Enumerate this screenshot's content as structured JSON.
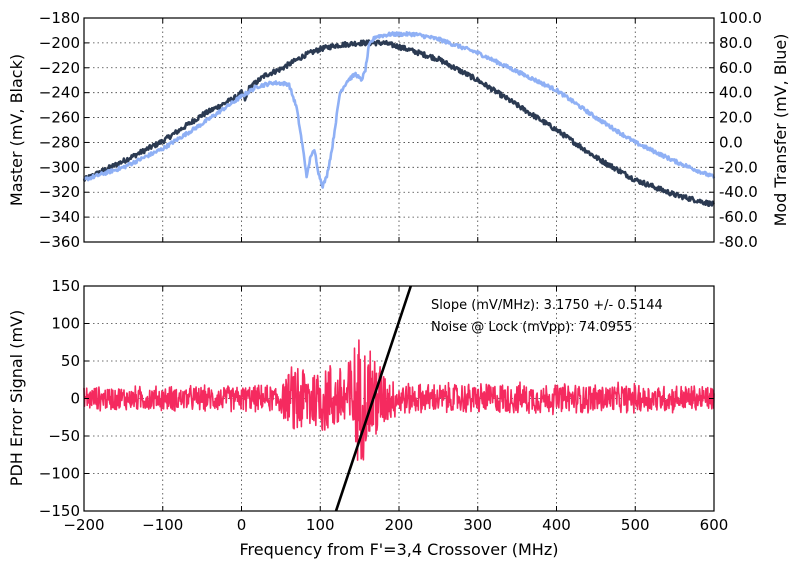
{
  "chart_data": [
    {
      "type": "line",
      "title": "",
      "xlabel": "",
      "ylabel": "Master (mV, Black)",
      "y2label": "Mod Transfer (mV, Blue)",
      "xlim": [
        -200,
        600
      ],
      "ylim": [
        -360,
        -180
      ],
      "y2lim": [
        -80,
        100
      ],
      "grid": true,
      "xticks": [
        -200,
        -100,
        0,
        100,
        200,
        300,
        400,
        500,
        600
      ],
      "yticks": [
        -360,
        -340,
        -320,
        -300,
        -280,
        -260,
        -240,
        -220,
        -200,
        -180
      ],
      "ytick_labels": [
        "−360",
        "−340",
        "−320",
        "−300",
        "−280",
        "−260",
        "−240",
        "−220",
        "−200",
        "−180"
      ],
      "y2ticks": [
        -80,
        -60,
        -40,
        -20,
        0,
        20,
        40,
        60,
        80,
        100
      ],
      "y2tick_labels": [
        "-80.0",
        "-60.0",
        "-40.0",
        "-20.0",
        "0.0",
        "20.0",
        "40.0",
        "60.0",
        "80.0",
        "100.0"
      ],
      "series": [
        {
          "axis": "left",
          "color": "#2b3a52",
          "noise": 2.0,
          "x": [
            -200,
            -150,
            -100,
            -50,
            -20,
            -5,
            0,
            5,
            10,
            30,
            50,
            80,
            100,
            120,
            150,
            180,
            200,
            250,
            300,
            350,
            400,
            450,
            500,
            550,
            600
          ],
          "y": [
            -310,
            -295,
            -279,
            -258,
            -248,
            -243,
            -240,
            -246,
            -236,
            -226,
            -221,
            -210,
            -205,
            -202,
            -200,
            -200,
            -203,
            -213,
            -230,
            -250,
            -270,
            -292,
            -310,
            -322,
            -330
          ]
        },
        {
          "axis": "right",
          "color": "#8fb0f5",
          "noise": 1.5,
          "x": [
            -200,
            -150,
            -100,
            -50,
            0,
            20,
            40,
            60,
            70,
            78,
            83,
            88,
            93,
            98,
            103,
            108,
            115,
            125,
            135,
            145,
            152,
            157,
            162,
            170,
            190,
            220,
            250,
            300,
            350,
            400,
            450,
            500,
            550,
            600
          ],
          "y": [
            -30,
            -20,
            -5,
            15,
            37,
            45,
            48,
            47,
            28,
            -5,
            -28,
            -10,
            -7,
            -25,
            -35,
            -28,
            -5,
            40,
            50,
            55,
            50,
            57,
            78,
            85,
            87,
            87,
            83,
            72,
            57,
            42,
            20,
            0,
            -15,
            -28
          ]
        }
      ]
    },
    {
      "type": "line",
      "title": "",
      "xlabel": "Frequency from F'=3,4 Crossover (MHz)",
      "ylabel": "PDH Error Signal (mV)",
      "xlim": [
        -200,
        600
      ],
      "ylim": [
        -150,
        150
      ],
      "grid": true,
      "xticks": [
        -200,
        -100,
        0,
        100,
        200,
        300,
        400,
        500,
        600
      ],
      "xtick_labels": [
        "−200",
        "−100",
        "0",
        "100",
        "200",
        "300",
        "400",
        "500",
        "600"
      ],
      "yticks": [
        -150,
        -100,
        -50,
        0,
        50,
        100,
        150
      ],
      "ytick_labels": [
        "−150",
        "−100",
        "−50",
        "0",
        "50",
        "100",
        "150"
      ],
      "annotations": [
        "Slope (mV/MHz): 3.1750 +/- 0.5144",
        "Noise @ Lock (mVpp): 74.0955"
      ],
      "series": [
        {
          "color": "#f52a5f",
          "noise_profile": {
            "x": [
              -200,
              40,
              60,
              70,
              80,
              95,
              110,
              120,
              130,
              140,
              150,
              160,
              170,
              180,
              195,
              220,
              300,
              500,
              600
            ],
            "amp": [
              18,
              20,
              38,
              65,
              55,
              50,
              60,
              45,
              65,
              75,
              95,
              90,
              80,
              45,
              28,
              22,
              24,
              22,
              20
            ]
          }
        },
        {
          "color": "#000000",
          "fit_line": {
            "x": [
              120,
              215
            ],
            "y": [
              -150,
              150
            ]
          }
        }
      ]
    }
  ]
}
